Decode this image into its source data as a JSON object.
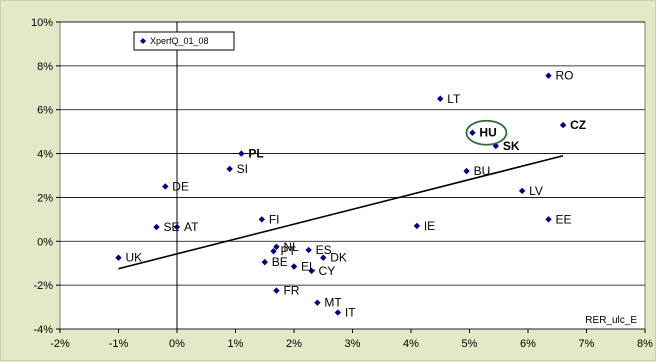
{
  "chart_data": {
    "type": "scatter",
    "title": "",
    "xlabel": "RER_ulc_E",
    "ylabel": "",
    "xlim": [
      -2,
      8
    ],
    "ylim": [
      -4,
      10
    ],
    "x_ticks": [
      "-2%",
      "-1%",
      "0%",
      "1%",
      "2%",
      "3%",
      "4%",
      "5%",
      "6%",
      "7%",
      "8%"
    ],
    "y_ticks": [
      "-4%",
      "-2%",
      "0%",
      "2%",
      "4%",
      "6%",
      "8%",
      "10%"
    ],
    "grid": "horizontal",
    "legend_position": "top-left",
    "series": [
      {
        "name": "XperfQ_01_08",
        "points": [
          {
            "label": "RO",
            "x": 6.35,
            "y": 7.55,
            "bold": false
          },
          {
            "label": "LT",
            "x": 4.5,
            "y": 6.5,
            "bold": false
          },
          {
            "label": "HU",
            "x": 5.05,
            "y": 4.95,
            "bold": true
          },
          {
            "label": "CZ",
            "x": 6.6,
            "y": 5.3,
            "bold": true
          },
          {
            "label": "SK",
            "x": 5.45,
            "y": 4.35,
            "bold": true
          },
          {
            "label": "PL",
            "x": 1.1,
            "y": 4.0,
            "bold": true
          },
          {
            "label": "SI",
            "x": 0.9,
            "y": 3.3,
            "bold": false
          },
          {
            "label": "BU",
            "x": 4.95,
            "y": 3.2,
            "bold": false
          },
          {
            "label": "DE",
            "x": -0.2,
            "y": 2.5,
            "bold": false
          },
          {
            "label": "LV",
            "x": 5.9,
            "y": 2.3,
            "bold": false
          },
          {
            "label": "FI",
            "x": 1.45,
            "y": 1.0,
            "bold": false
          },
          {
            "label": "EE",
            "x": 6.35,
            "y": 1.0,
            "bold": false
          },
          {
            "label": "IE",
            "x": 4.1,
            "y": 0.7,
            "bold": false
          },
          {
            "label": "SE",
            "x": -0.35,
            "y": 0.65,
            "bold": false
          },
          {
            "label": "AT",
            "x": 0.0,
            "y": 0.65,
            "bold": false
          },
          {
            "label": "UK",
            "x": -1.0,
            "y": -0.75,
            "bold": false
          },
          {
            "label": "NL",
            "x": 1.7,
            "y": -0.25,
            "bold": false
          },
          {
            "label": "PT",
            "x": 1.65,
            "y": -0.45,
            "bold": false
          },
          {
            "label": "ES",
            "x": 2.25,
            "y": -0.4,
            "bold": false
          },
          {
            "label": "DK",
            "x": 2.5,
            "y": -0.75,
            "bold": false
          },
          {
            "label": "BE",
            "x": 1.5,
            "y": -0.95,
            "bold": false
          },
          {
            "label": "EL",
            "x": 2.0,
            "y": -1.15,
            "bold": false
          },
          {
            "label": "CY",
            "x": 2.3,
            "y": -1.35,
            "bold": false
          },
          {
            "label": "FR",
            "x": 1.7,
            "y": -2.25,
            "bold": false
          },
          {
            "label": "MT",
            "x": 2.4,
            "y": -2.8,
            "bold": false
          },
          {
            "label": "IT",
            "x": 2.75,
            "y": -3.25,
            "bold": false
          }
        ]
      }
    ],
    "trendline": {
      "x1": -1.0,
      "y1": -1.25,
      "x2": 6.6,
      "y2": 3.9
    },
    "highlight": "HU",
    "colors": {
      "background": "#e3e9c6",
      "plot_area": "#ffffff",
      "marker": "#000080",
      "grid": "#000000",
      "highlight_ring": "#2e6b35"
    }
  }
}
